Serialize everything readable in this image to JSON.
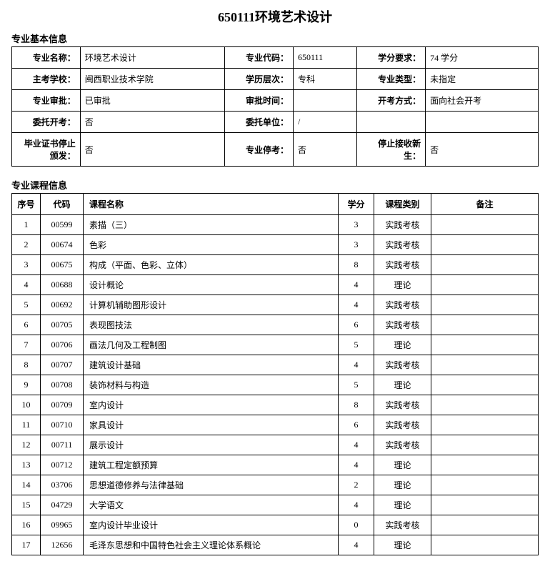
{
  "title": "650111环境艺术设计",
  "section1_header": "专业基本信息",
  "section2_header": "专业课程信息",
  "info_rows": [
    [
      {
        "label": "专业名称：",
        "value": "环境艺术设计"
      },
      {
        "label": "专业代码：",
        "value": "650111"
      },
      {
        "label": "学分要求：",
        "value": "74 学分"
      }
    ],
    [
      {
        "label": "主考学校：",
        "value": "闽西职业技术学院"
      },
      {
        "label": "学历层次：",
        "value": "专科"
      },
      {
        "label": "专业类型：",
        "value": "未指定"
      }
    ],
    [
      {
        "label": "专业审批：",
        "value": "已审批"
      },
      {
        "label": "审批时间：",
        "value": ""
      },
      {
        "label": "开考方式：",
        "value": "面向社会开考"
      }
    ],
    [
      {
        "label": "委托开考：",
        "value": "否"
      },
      {
        "label": "委托单位：",
        "value": "/"
      },
      {
        "label": "",
        "value": ""
      }
    ],
    [
      {
        "label": "毕业证书停止颁发：",
        "value": "否"
      },
      {
        "label": "专业停考：",
        "value": "否"
      },
      {
        "label": "停止接收新生：",
        "value": "否"
      }
    ]
  ],
  "course_headers": [
    "序号",
    "代码",
    "课程名称",
    "学分",
    "课程类别",
    "备注"
  ],
  "courses": [
    {
      "idx": "1",
      "code": "00599",
      "name": "素描（三）",
      "credit": "3",
      "type": "实践考核",
      "note": ""
    },
    {
      "idx": "2",
      "code": "00674",
      "name": "色彩",
      "credit": "3",
      "type": "实践考核",
      "note": ""
    },
    {
      "idx": "3",
      "code": "00675",
      "name": "构成（平面、色彩、立体）",
      "credit": "8",
      "type": "实践考核",
      "note": ""
    },
    {
      "idx": "4",
      "code": "00688",
      "name": "设计概论",
      "credit": "4",
      "type": "理论",
      "note": ""
    },
    {
      "idx": "5",
      "code": "00692",
      "name": "计算机辅助图形设计",
      "credit": "4",
      "type": "实践考核",
      "note": ""
    },
    {
      "idx": "6",
      "code": "00705",
      "name": "表现图技法",
      "credit": "6",
      "type": "实践考核",
      "note": ""
    },
    {
      "idx": "7",
      "code": "00706",
      "name": "画法几何及工程制图",
      "credit": "5",
      "type": "理论",
      "note": ""
    },
    {
      "idx": "8",
      "code": "00707",
      "name": "建筑设计基础",
      "credit": "4",
      "type": "实践考核",
      "note": ""
    },
    {
      "idx": "9",
      "code": "00708",
      "name": "装饰材料与构造",
      "credit": "5",
      "type": "理论",
      "note": ""
    },
    {
      "idx": "10",
      "code": "00709",
      "name": "室内设计",
      "credit": "8",
      "type": "实践考核",
      "note": ""
    },
    {
      "idx": "11",
      "code": "00710",
      "name": "家具设计",
      "credit": "6",
      "type": "实践考核",
      "note": ""
    },
    {
      "idx": "12",
      "code": "00711",
      "name": "展示设计",
      "credit": "4",
      "type": "实践考核",
      "note": ""
    },
    {
      "idx": "13",
      "code": "00712",
      "name": "建筑工程定额预算",
      "credit": "4",
      "type": "理论",
      "note": ""
    },
    {
      "idx": "14",
      "code": "03706",
      "name": "思想道德修养与法律基础",
      "credit": "2",
      "type": "理论",
      "note": ""
    },
    {
      "idx": "15",
      "code": "04729",
      "name": "大学语文",
      "credit": "4",
      "type": "理论",
      "note": ""
    },
    {
      "idx": "16",
      "code": "09965",
      "name": "室内设计毕业设计",
      "credit": "0",
      "type": "实践考核",
      "note": ""
    },
    {
      "idx": "17",
      "code": "12656",
      "name": "毛泽东思想和中国特色社会主义理论体系概论",
      "credit": "4",
      "type": "理论",
      "note": ""
    }
  ]
}
